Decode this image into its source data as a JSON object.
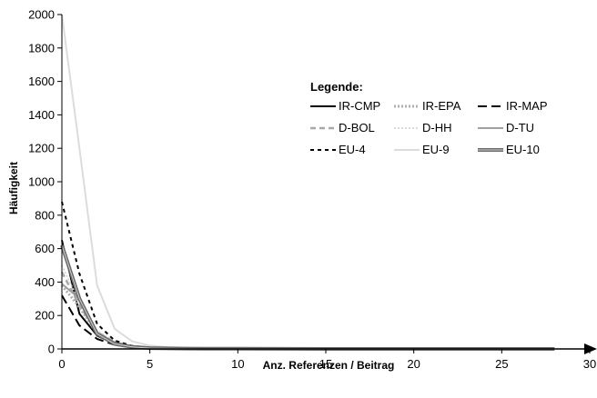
{
  "chart_data": {
    "type": "line",
    "xlabel": "Anz. Referenzen / Beitrag",
    "ylabel": "Häufigkeit",
    "xlim": [
      0,
      30
    ],
    "ylim": [
      0,
      2000
    ],
    "xticks": [
      0,
      5,
      10,
      15,
      20,
      25,
      30
    ],
    "yticks": [
      0,
      200,
      400,
      600,
      800,
      1000,
      1200,
      1400,
      1600,
      1800,
      2000
    ],
    "grid": false,
    "legend": {
      "title": "Legende:",
      "placement": "center-right",
      "columns": 3
    },
    "series": [
      {
        "name": "IR-CMP",
        "color": "#000000",
        "style": "solid",
        "width": 2,
        "x": [
          0,
          1,
          2,
          3,
          4,
          5,
          6,
          7,
          8,
          9,
          10,
          12,
          15,
          20,
          25,
          28
        ],
        "y": [
          650,
          210,
          80,
          30,
          12,
          6,
          3,
          2,
          1,
          1,
          1,
          0,
          0,
          0,
          0,
          0
        ]
      },
      {
        "name": "IR-EPA",
        "color": "#b0b0b0",
        "style": "dotted",
        "width": 3,
        "x": [
          0,
          1,
          2,
          3,
          4,
          5,
          6,
          7,
          8,
          10,
          15,
          20,
          25,
          28
        ],
        "y": [
          380,
          250,
          90,
          35,
          15,
          6,
          3,
          2,
          1,
          1,
          0,
          0,
          0,
          0
        ]
      },
      {
        "name": "IR-MAP",
        "color": "#000000",
        "style": "longdash",
        "width": 2,
        "x": [
          0,
          1,
          2,
          3,
          4,
          5,
          6,
          7,
          8,
          10,
          15,
          20,
          25,
          28
        ],
        "y": [
          320,
          140,
          60,
          25,
          10,
          5,
          3,
          2,
          1,
          1,
          0,
          0,
          0,
          0
        ]
      },
      {
        "name": "D-BOL",
        "color": "#a8a8a8",
        "style": "dash",
        "width": 2.5,
        "x": [
          0,
          1,
          2,
          3,
          4,
          5,
          6,
          7,
          8,
          10,
          15,
          20,
          25,
          28
        ],
        "y": [
          460,
          260,
          100,
          40,
          15,
          7,
          4,
          2,
          1,
          1,
          0,
          0,
          0,
          0
        ]
      },
      {
        "name": "D-HH",
        "color": "#cfcfcf",
        "style": "dotted",
        "width": 1.5,
        "x": [
          0,
          1,
          2,
          3,
          4,
          5,
          6,
          7,
          8,
          10,
          15,
          20,
          25,
          28
        ],
        "y": [
          500,
          280,
          110,
          45,
          18,
          8,
          4,
          2,
          1,
          1,
          0,
          0,
          0,
          0
        ]
      },
      {
        "name": "D-TU",
        "color": "#a0a0a0",
        "style": "solid",
        "width": 2,
        "x": [
          0,
          1,
          2,
          3,
          4,
          5,
          6,
          7,
          8,
          10,
          15,
          20,
          25,
          28
        ],
        "y": [
          390,
          300,
          95,
          40,
          16,
          7,
          3,
          2,
          1,
          1,
          0,
          0,
          0,
          0
        ]
      },
      {
        "name": "EU-4",
        "color": "#000000",
        "style": "shortdash",
        "width": 2,
        "x": [
          0,
          1,
          2,
          3,
          4,
          5,
          6,
          7,
          8,
          10,
          15,
          20,
          25,
          28
        ],
        "y": [
          880,
          450,
          150,
          50,
          18,
          8,
          4,
          2,
          1,
          1,
          0,
          0,
          0,
          0
        ]
      },
      {
        "name": "EU-9",
        "color": "#dcdcdc",
        "style": "solid",
        "width": 2,
        "x": [
          0,
          1,
          2,
          3,
          4,
          5,
          6,
          7,
          8,
          10,
          12,
          15,
          20,
          25,
          28
        ],
        "y": [
          2000,
          1200,
          380,
          120,
          45,
          20,
          10,
          5,
          3,
          2,
          1,
          0,
          0,
          0,
          0
        ]
      },
      {
        "name": "EU-10",
        "color": "#6a6a6a",
        "style": "double",
        "width": 3,
        "x": [
          0,
          1,
          2,
          3,
          4,
          5,
          6,
          7,
          8,
          10,
          15,
          20,
          25,
          28
        ],
        "y": [
          620,
          300,
          90,
          30,
          12,
          5,
          3,
          2,
          1,
          1,
          0,
          0,
          0,
          0
        ]
      }
    ]
  }
}
